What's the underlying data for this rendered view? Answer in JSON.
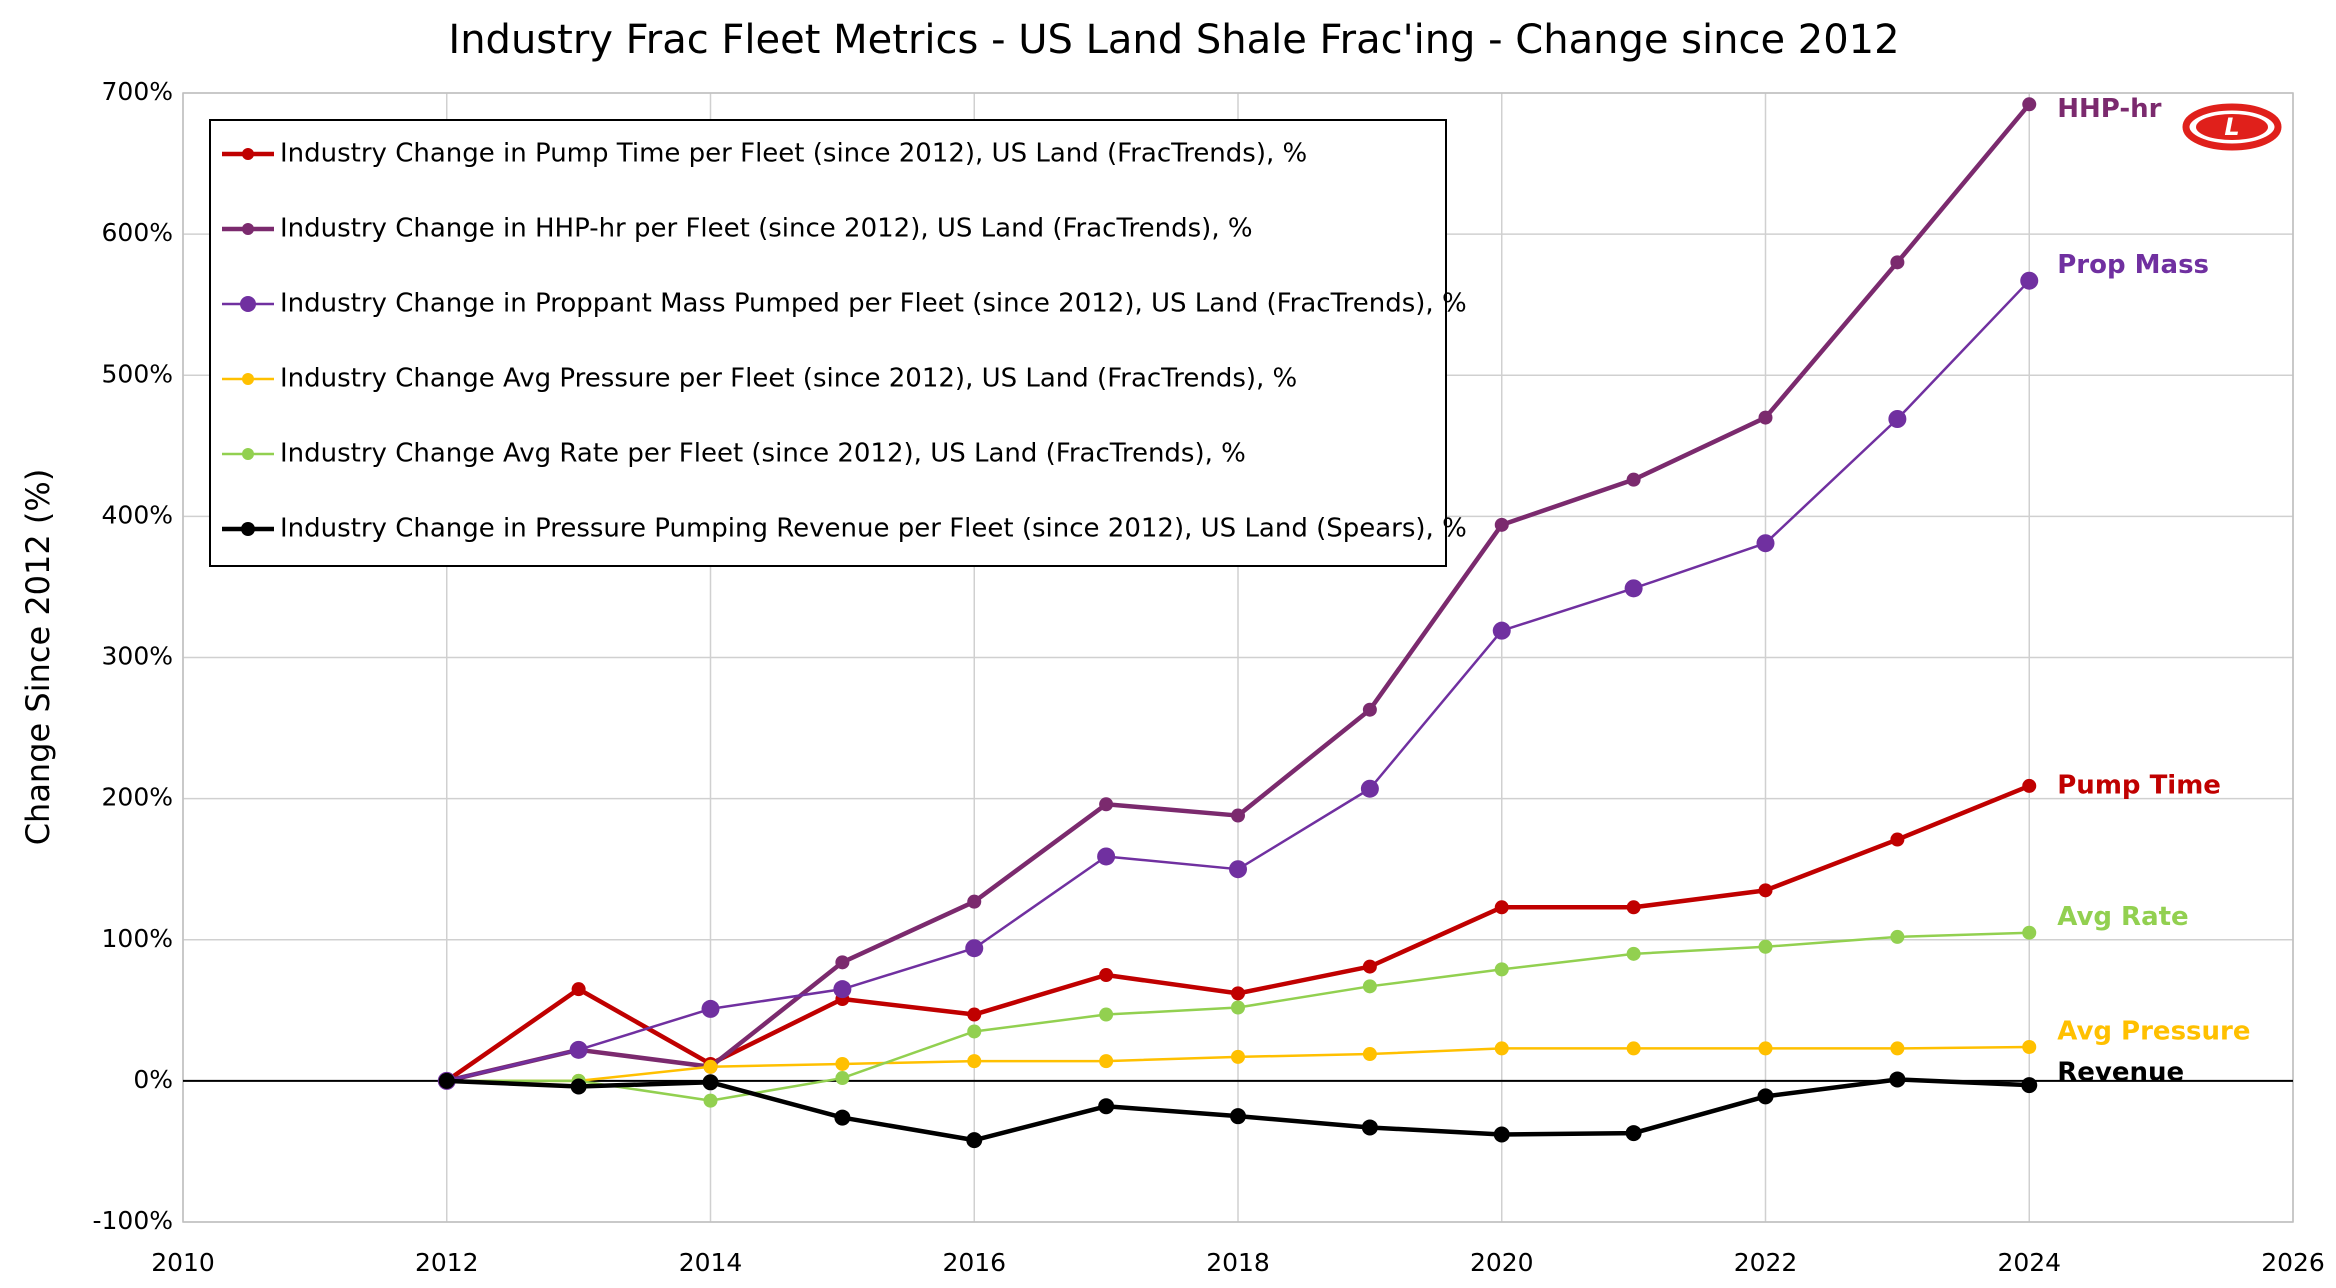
{
  "chart_data": {
    "type": "line",
    "title": "Industry Frac Fleet Metrics - US Land Shale Frac'ing - Change since 2012",
    "y_axis_label": "Change Since 2012 (%)",
    "logo": "L",
    "x": [
      2012,
      2013,
      2014,
      2015,
      2016,
      2017,
      2018,
      2019,
      2020,
      2021,
      2022,
      2023,
      2024
    ],
    "series": [
      {
        "name": "Industry Change in Pump Time per Fleet (since 2012), US Land (FracTrends), %",
        "end_label": "Pump Time",
        "color": "#c00000",
        "values": [
          0,
          65,
          12,
          58,
          47,
          75,
          62,
          81,
          123,
          123,
          135,
          171,
          209
        ]
      },
      {
        "name": "Industry Change in HHP-hr per Fleet (since 2012), US Land (FracTrends), %",
        "end_label": "HHP-hr",
        "color": "#7b2a6e",
        "values": [
          0,
          22,
          10,
          84,
          127,
          196,
          188,
          263,
          394,
          426,
          470,
          580,
          692
        ]
      },
      {
        "name": "Industry Change in Proppant Mass Pumped per Fleet (since 2012), US Land (FracTrends), %",
        "end_label": "Prop Mass",
        "color": "#7030a0",
        "values": [
          0,
          22,
          51,
          65,
          94,
          159,
          150,
          207,
          319,
          349,
          381,
          469,
          567
        ]
      },
      {
        "name": "Industry Change Avg Pressure per Fleet (since 2012), US Land (FracTrends), %",
        "end_label": "Avg Pressure",
        "color": "#ffc000",
        "values": [
          0,
          0,
          10,
          12,
          14,
          14,
          17,
          19,
          23,
          23,
          23,
          23,
          24
        ]
      },
      {
        "name": "Industry Change Avg Rate per Fleet (since 2012), US Land (FracTrends), %",
        "end_label": "Avg Rate",
        "color": "#92d050",
        "values": [
          0,
          0,
          -14,
          2,
          35,
          47,
          52,
          67,
          79,
          90,
          95,
          102,
          105
        ]
      },
      {
        "name": "Industry Change in Pressure Pumping Revenue per Fleet (since 2012), US Land (Spears), %",
        "end_label": "Revenue",
        "color": "#000000",
        "values": [
          0,
          -4,
          -1,
          -26,
          -42,
          -18,
          -25,
          -33,
          -38,
          -37,
          -11,
          1,
          -3
        ]
      }
    ],
    "xlim": [
      2010,
      2026
    ],
    "xticks": [
      2010,
      2012,
      2014,
      2016,
      2018,
      2020,
      2022,
      2024,
      2026
    ],
    "ylim": [
      -100,
      700
    ],
    "yticks": [
      {
        "value": -100,
        "label": "-100%"
      },
      {
        "value": 0,
        "label": "0%"
      },
      {
        "value": 100,
        "label": "100%"
      },
      {
        "value": 200,
        "label": "200%"
      },
      {
        "value": 300,
        "label": "300%"
      },
      {
        "value": 400,
        "label": "400%"
      },
      {
        "value": 500,
        "label": "500%"
      },
      {
        "value": 600,
        "label": "600%"
      },
      {
        "value": 700,
        "label": "700%"
      }
    ],
    "grid": true,
    "legend": "upper left"
  }
}
